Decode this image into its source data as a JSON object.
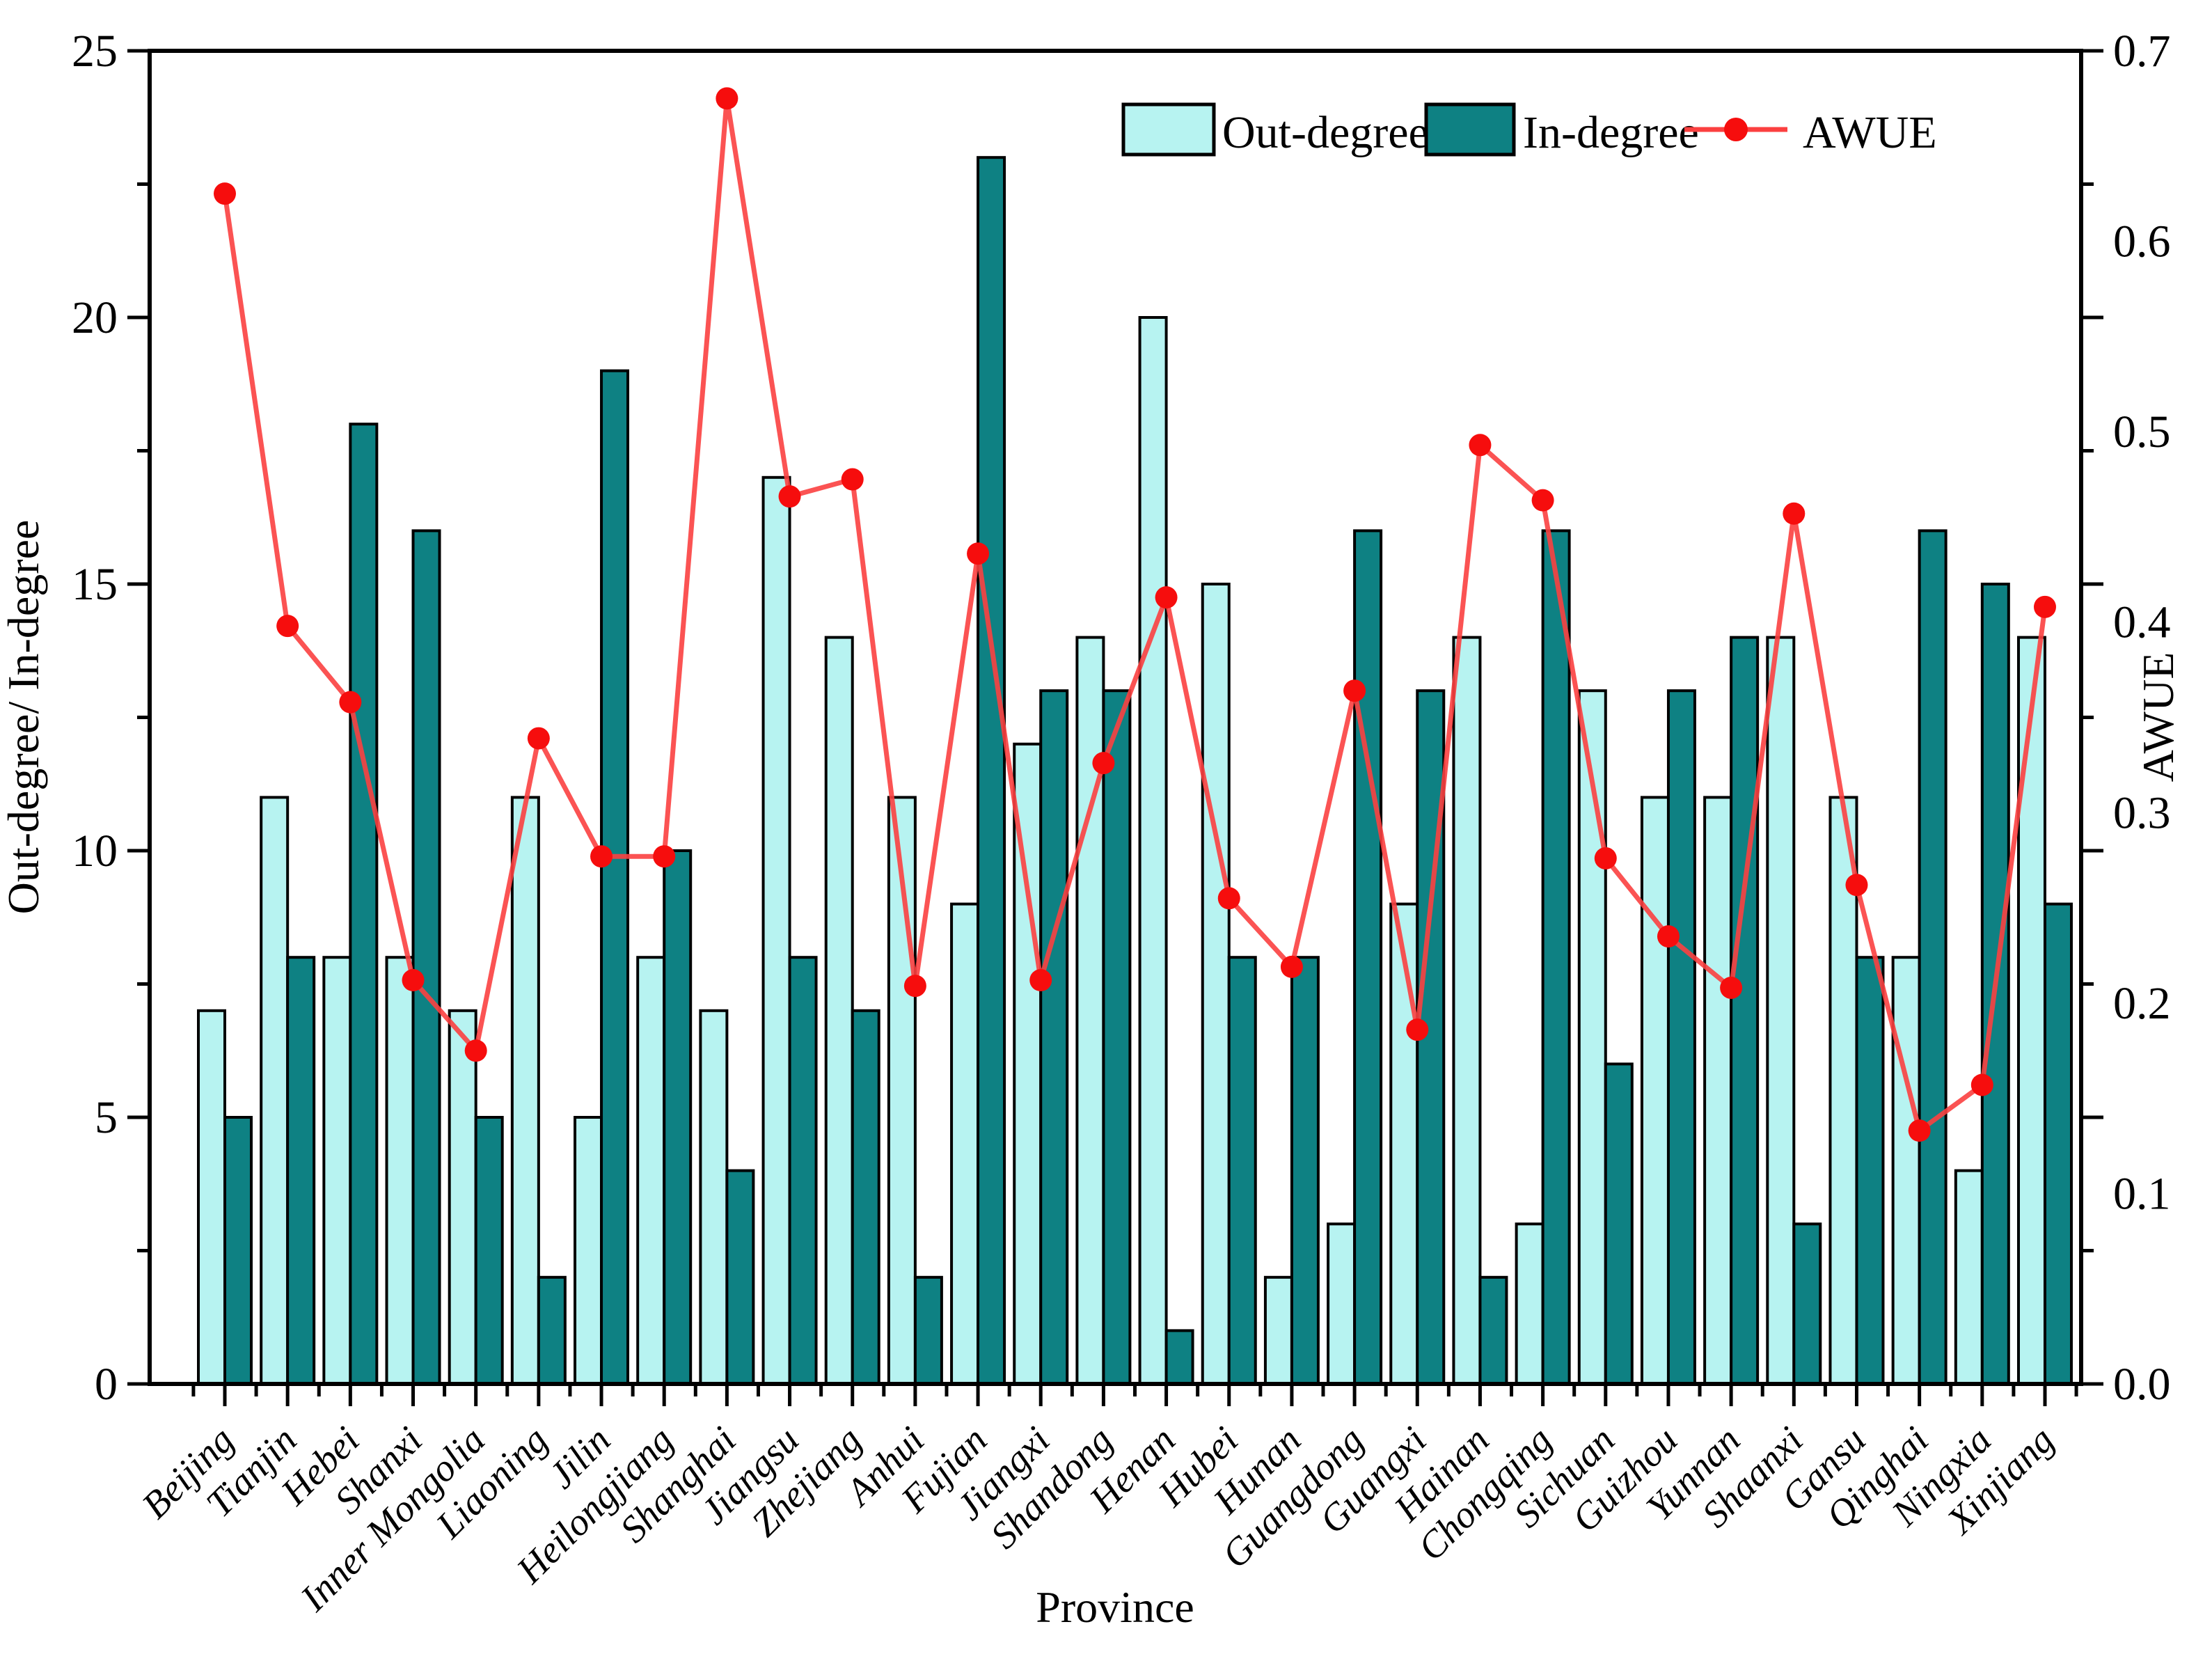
{
  "chart_data": {
    "type": "bar-line-combo",
    "title": "",
    "xlabel": "Province",
    "ylabel_left": "Out-degree/ In-degree",
    "ylabel_right": "AWUE",
    "ylim_left": [
      0,
      25
    ],
    "ylim_right": [
      0,
      0.7
    ],
    "grid": false,
    "legend_position": "top-right-inside",
    "left_tick_labels": [
      "0",
      "5",
      "10",
      "15",
      "20",
      "25"
    ],
    "right_tick_labels": [
      "0.0",
      "0.1",
      "0.2",
      "0.3",
      "0.4",
      "0.5",
      "0.6",
      "0.7"
    ],
    "categories": [
      "Beijing",
      "Tianjin",
      "Hebei",
      "Shanxi",
      "Inner Mongolia",
      "Liaoning",
      "Jilin",
      "Heilongjiang",
      "Shanghai",
      "Jiangsu",
      "Zhejiang",
      "Anhui",
      "Fujian",
      "Jiangxi",
      "Shandong",
      "Henan",
      "Hubei",
      "Hunan",
      "Guangdong",
      "Guangxi",
      "Hainan",
      "Chongqing",
      "Sichuan",
      "Guizhou",
      "Yunnan",
      "Shaanxi",
      "Gansu",
      "Qinghai",
      "Ningxia",
      "Xinjiang"
    ],
    "series": [
      {
        "name": "Out-degree",
        "type": "bar",
        "axis": "left",
        "color": "#b7f3f1",
        "values": [
          7,
          11,
          8,
          8,
          7,
          11,
          5,
          8,
          7,
          17,
          14,
          11,
          9,
          12,
          14,
          20,
          15,
          2,
          3,
          9,
          14,
          3,
          13,
          11,
          11,
          14,
          11,
          8,
          4,
          14
        ]
      },
      {
        "name": "In-degree",
        "type": "bar",
        "axis": "left",
        "color": "#0e8183",
        "values": [
          5,
          8,
          18,
          16,
          5,
          2,
          19,
          10,
          4,
          8,
          7,
          2,
          23,
          13,
          13,
          1,
          8,
          8,
          16,
          13,
          2,
          16,
          6,
          13,
          14,
          3,
          8,
          16,
          15,
          9
        ]
      },
      {
        "name": "AWUE",
        "type": "line",
        "axis": "right",
        "color": "#fb4040",
        "marker_color": "#f60d0d",
        "values": [
          0.625,
          0.398,
          0.358,
          0.212,
          0.175,
          0.339,
          0.277,
          0.277,
          0.675,
          0.466,
          0.475,
          0.209,
          0.436,
          0.212,
          0.326,
          0.413,
          0.255,
          0.219,
          0.364,
          0.186,
          0.493,
          0.464,
          0.276,
          0.235,
          0.208,
          0.457,
          0.262,
          0.133,
          0.157,
          0.408
        ]
      }
    ],
    "colors": {
      "axis": "#000000",
      "background": "#ffffff"
    }
  }
}
